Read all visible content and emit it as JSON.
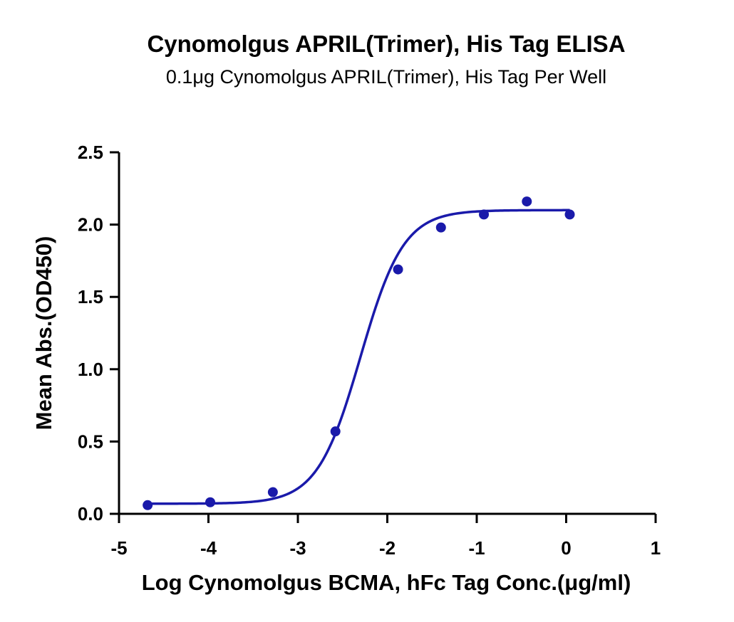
{
  "chart_data": {
    "type": "scatter",
    "title": "Cynomolgus APRIL(Trimer), His Tag ELISA",
    "subtitle": "0.1μg Cynomolgus APRIL(Trimer), His Tag Per Well",
    "xlabel": "Log Cynomolgus BCMA, hFc Tag Conc.(μg/ml)",
    "ylabel": "Mean Abs.(OD450)",
    "xlim": [
      -5,
      1
    ],
    "ylim": [
      0,
      2.5
    ],
    "x_ticks": [
      -5,
      -4,
      -3,
      -2,
      -1,
      0,
      1
    ],
    "y_ticks": [
      0.0,
      0.5,
      1.0,
      1.5,
      2.0,
      2.5
    ],
    "x_tick_labels": [
      "-5",
      "-4",
      "-3",
      "-2",
      "-1",
      "0",
      "1"
    ],
    "y_tick_labels": [
      "0.0",
      "0.5",
      "1.0",
      "1.5",
      "2.0",
      "2.5"
    ],
    "grid": false,
    "color": "#1a1aaa",
    "series": [
      {
        "points": [
          {
            "x": -4.68,
            "y": 0.06
          },
          {
            "x": -3.98,
            "y": 0.08
          },
          {
            "x": -3.28,
            "y": 0.15
          },
          {
            "x": -2.58,
            "y": 0.57
          },
          {
            "x": -1.88,
            "y": 1.69
          },
          {
            "x": -1.4,
            "y": 1.98
          },
          {
            "x": -0.92,
            "y": 2.07
          },
          {
            "x": -0.44,
            "y": 2.16
          },
          {
            "x": 0.04,
            "y": 2.07
          }
        ],
        "fit": {
          "model": "4PL",
          "bottom": 0.07,
          "top": 2.1,
          "log_ec50": -2.3,
          "hill": 1.8,
          "x_range": [
            -4.68,
            0.04
          ]
        }
      }
    ]
  }
}
